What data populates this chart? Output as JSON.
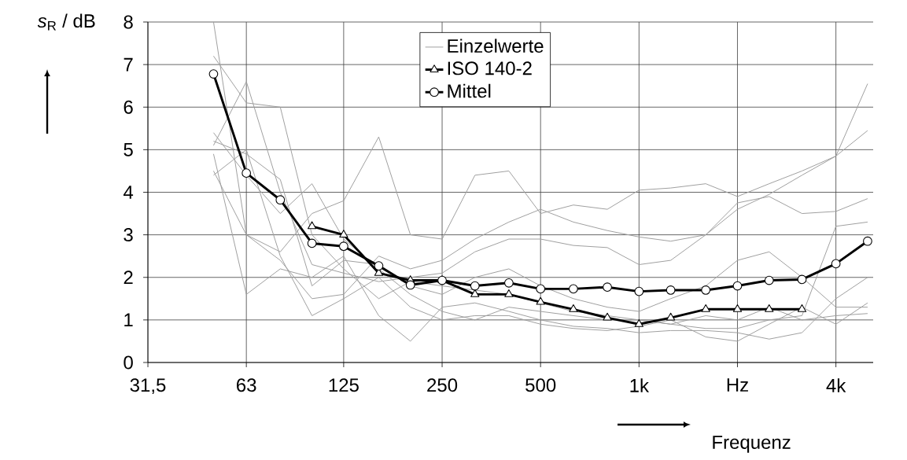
{
  "chart_data": {
    "type": "line",
    "xlabel": "Frequenz",
    "ylabel": "*s*$_{R}$ / dB",
    "x": [
      50,
      63,
      80,
      100,
      125,
      160,
      200,
      250,
      315,
      400,
      500,
      630,
      800,
      1000,
      1250,
      1600,
      2000,
      2500,
      3150,
      4000,
      5000
    ],
    "log": "x",
    "grid": true,
    "legend": "top",
    "xlim": [
      31.5,
      5200
    ],
    "xticks": [
      {
        "value": 31.5,
        "label": "31,5"
      },
      63,
      125,
      250,
      500,
      {
        "value": 1000,
        "label": "1k"
      },
      {
        "value": 2000,
        "label": "Hz"
      },
      {
        "value": 4000,
        "label": "4k"
      }
    ],
    "ylim": [
      0,
      8
    ],
    "yticks": [
      0,
      1,
      2,
      3,
      4,
      5,
      6,
      7,
      8
    ],
    "series": [
      {
        "name": "Einzelwerte",
        "color": "#a0a0a0",
        "marker": "none",
        "values": [
          4.5,
          3.0,
          2.6,
          3.5,
          3.8,
          5.3,
          3.0,
          2.9,
          4.4,
          4.5,
          3.5,
          3.7,
          3.6,
          4.05,
          4.1,
          4.2,
          3.9,
          4.2,
          4.5,
          4.85,
          6.55
        ]
      },
      {
        "color": "#a0a0a0",
        "marker": "none",
        "values": [
          8,
          3.0,
          2.4,
          1.5,
          1.6,
          2.5,
          2.2,
          2.4,
          2.9,
          3.3,
          3.6,
          3.3,
          3.1,
          2.95,
          2.85,
          3.0,
          3.6,
          3.95,
          4.4,
          4.85,
          5.45
        ]
      },
      {
        "color": "#a0a0a0",
        "marker": "none",
        "values": [
          5.1,
          6.6,
          4.0,
          2.3,
          2.1,
          1.9,
          2.0,
          2.1,
          2.6,
          2.9,
          2.9,
          2.75,
          2.7,
          2.3,
          2.4,
          3.0,
          3.75,
          3.9,
          3.5,
          3.55,
          3.85
        ]
      },
      {
        "color": "#a0a0a0",
        "marker": "none",
        "values": [
          7.2,
          6.1,
          6.0,
          3.0,
          2.2,
          1.5,
          1.9,
          1.8,
          1.7,
          1.6,
          1.4,
          1.2,
          1.1,
          1.0,
          0.9,
          0.8,
          0.8,
          1.0,
          1.1,
          3.2,
          3.3
        ]
      },
      {
        "color": "#a0a0a0",
        "marker": "none",
        "values": [
          4.9,
          1.6,
          2.2,
          2.0,
          2.5,
          1.1,
          0.5,
          1.3,
          1.4,
          1.2,
          1.0,
          0.85,
          0.8,
          0.7,
          0.75,
          0.75,
          0.7,
          0.55,
          0.7,
          1.5,
          2.0
        ]
      },
      {
        "color": "#a0a0a0",
        "marker": "none",
        "values": [
          4.4,
          5.0,
          2.5,
          1.1,
          1.5,
          2.0,
          1.3,
          1.0,
          1.1,
          1.1,
          0.9,
          0.8,
          0.75,
          0.85,
          1.0,
          0.6,
          0.5,
          0.9,
          1.3,
          0.9,
          1.4
        ]
      },
      {
        "color": "#a0a0a0",
        "marker": "none",
        "values": [
          5.2,
          4.9,
          4.3,
          1.8,
          2.4,
          2.3,
          1.8,
          1.6,
          2.0,
          2.2,
          1.8,
          1.5,
          1.3,
          1.2,
          1.5,
          1.8,
          2.4,
          2.6,
          2.0,
          1.3,
          1.3
        ]
      },
      {
        "color": "#a0a0a0",
        "marker": "none",
        "values": [
          5.4,
          4.4,
          3.5,
          4.2,
          2.9,
          2.2,
          1.6,
          1.2,
          1.0,
          1.3,
          1.2,
          1.1,
          1.0,
          1.0,
          0.9,
          1.1,
          1.0,
          1.3,
          1.0,
          1.1,
          1.15
        ]
      },
      {
        "name": "ISO 140-2",
        "color": "#000000",
        "marker": "triangle",
        "values": [
          null,
          null,
          null,
          3.2,
          3.0,
          2.1,
          1.93,
          1.93,
          1.6,
          1.6,
          1.42,
          1.25,
          1.05,
          0.9,
          1.05,
          1.25,
          1.25,
          1.25,
          1.25,
          null,
          null
        ]
      },
      {
        "name": "Mittel",
        "color": "#000000",
        "marker": "circle",
        "values": [
          6.78,
          4.45,
          3.82,
          2.8,
          2.73,
          2.27,
          1.82,
          1.93,
          1.8,
          1.87,
          1.73,
          1.73,
          1.77,
          1.67,
          1.7,
          1.7,
          1.8,
          1.93,
          1.95,
          2.32,
          2.85
        ]
      }
    ]
  }
}
